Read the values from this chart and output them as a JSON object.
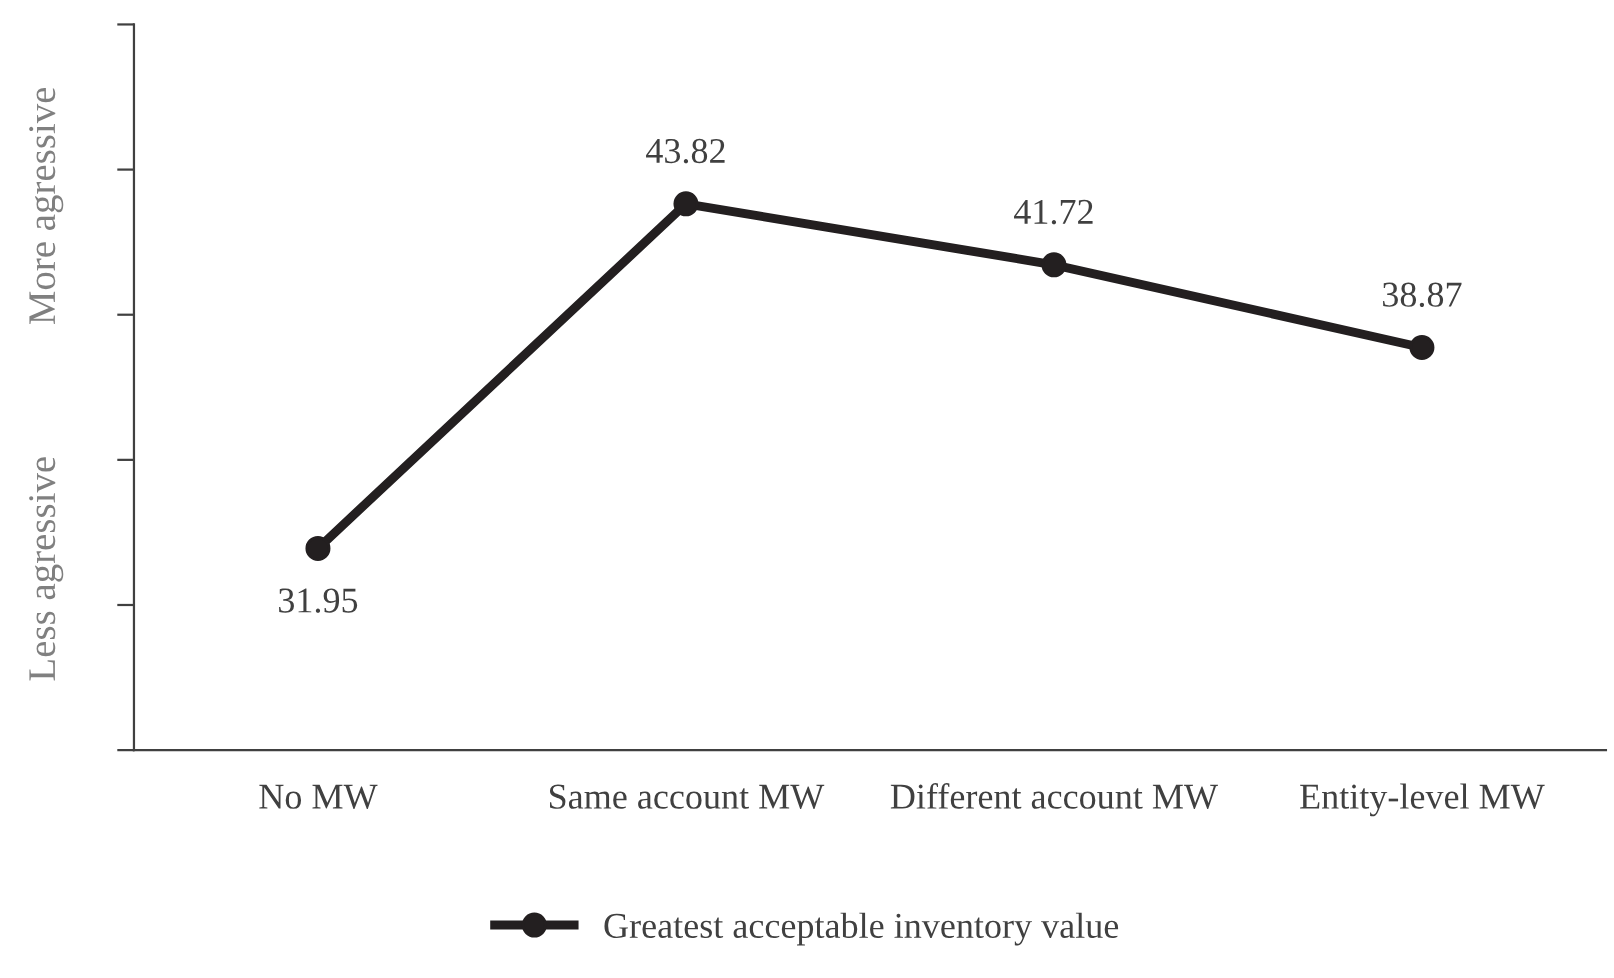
{
  "chart_data": {
    "type": "line",
    "categories": [
      "No MW",
      "Same account MW",
      "Different account MW",
      "Entity-level MW"
    ],
    "series": [
      {
        "name": "Greatest acceptable inventory value",
        "color": "#231f20",
        "values": [
          31.95,
          43.82,
          41.72,
          38.87
        ]
      }
    ],
    "ylim": [
      25,
      50
    ],
    "yticks": [
      {
        "value": 25,
        "label": null
      },
      {
        "value": 30,
        "label": null
      },
      {
        "value": 35,
        "label": null
      },
      {
        "value": 40,
        "label": null
      },
      {
        "value": 45,
        "label": null
      },
      {
        "value": 50,
        "label": null
      }
    ],
    "tick_labels": "x",
    "annotations": [
      "Less agressive",
      "More agressive"
    ],
    "data_labels": true,
    "marker": "circle",
    "line_style": "solid",
    "grid": false,
    "legend": "bottom"
  }
}
